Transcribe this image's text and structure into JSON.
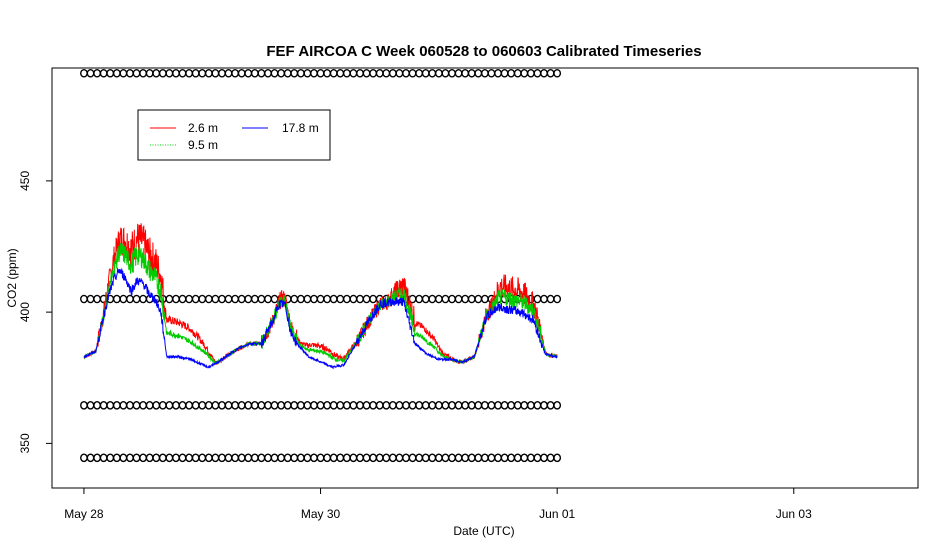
{
  "chart_data": {
    "type": "line",
    "title": "FEF AIRCOA C  Week 060528 to 060603  Calibrated Timeseries",
    "xlabel": "Date (UTC)",
    "ylabel": "CO2 (ppm)",
    "x_ticks": [
      {
        "day": 0,
        "label": "May 28"
      },
      {
        "day": 2,
        "label": "May 30"
      },
      {
        "day": 4,
        "label": "Jun 01"
      },
      {
        "day": 6,
        "label": "Jun 03"
      }
    ],
    "y_ticks": [
      350,
      400,
      450
    ],
    "xlim_days_from_may28": [
      -0.27,
      7.05
    ],
    "ylim": [
      333,
      493
    ],
    "grid": false,
    "legend_position": "top-left",
    "series": [
      {
        "name": "2.6 m",
        "color": "#ff0000"
      },
      {
        "name": "9.5 m",
        "color": "#00cc00",
        "style": "dotted"
      },
      {
        "name": "17.8 m",
        "color": "#0000ff"
      }
    ],
    "series_shape_17_8m": [
      [
        0.0,
        383
      ],
      [
        0.05,
        384
      ],
      [
        0.1,
        385
      ],
      [
        0.15,
        395
      ],
      [
        0.2,
        405
      ],
      [
        0.25,
        412
      ],
      [
        0.3,
        416
      ],
      [
        0.35,
        413
      ],
      [
        0.4,
        408
      ],
      [
        0.45,
        412
      ],
      [
        0.5,
        411
      ],
      [
        0.55,
        407
      ],
      [
        0.6,
        405
      ],
      [
        0.65,
        400
      ],
      [
        0.7,
        383
      ],
      [
        0.8,
        383
      ],
      [
        0.9,
        382
      ],
      [
        1.0,
        380
      ],
      [
        1.05,
        379
      ],
      [
        1.1,
        380
      ],
      [
        1.2,
        383
      ],
      [
        1.3,
        386
      ],
      [
        1.4,
        388
      ],
      [
        1.5,
        388
      ],
      [
        1.6,
        397
      ],
      [
        1.65,
        403
      ],
      [
        1.7,
        403
      ],
      [
        1.75,
        392
      ],
      [
        1.8,
        388
      ],
      [
        1.9,
        383
      ],
      [
        2.0,
        381
      ],
      [
        2.1,
        379
      ],
      [
        2.2,
        380
      ],
      [
        2.3,
        388
      ],
      [
        2.4,
        396
      ],
      [
        2.5,
        403
      ],
      [
        2.6,
        404
      ],
      [
        2.7,
        404
      ],
      [
        2.8,
        388
      ],
      [
        2.9,
        384
      ],
      [
        3.0,
        382
      ],
      [
        3.1,
        382
      ],
      [
        3.2,
        381
      ],
      [
        3.3,
        383
      ],
      [
        3.4,
        398
      ],
      [
        3.5,
        402
      ],
      [
        3.6,
        401
      ],
      [
        3.7,
        400
      ],
      [
        3.8,
        397
      ],
      [
        3.9,
        384
      ],
      [
        4.0,
        383
      ]
    ],
    "offset_9_5m": [
      0,
      0,
      0,
      4,
      8,
      10,
      10,
      9,
      8,
      9,
      8,
      7,
      6,
      5,
      0,
      0,
      0,
      0,
      0,
      0,
      0,
      1,
      1,
      1,
      3,
      4,
      4,
      2,
      1,
      0,
      0,
      0,
      0,
      2,
      4,
      4,
      5,
      4,
      1,
      0,
      0,
      0,
      0,
      1,
      4,
      4,
      4,
      4,
      3,
      0,
      0
    ],
    "offset_2_6m": [
      0,
      0,
      1,
      7,
      13,
      16,
      16,
      15,
      14,
      14,
      13,
      12,
      10,
      7,
      0,
      0,
      0,
      0,
      0,
      0,
      0,
      2,
      2,
      2,
      5,
      6,
      6,
      3,
      2,
      0,
      0,
      0,
      0,
      4,
      7,
      8,
      9,
      7,
      2,
      0,
      0,
      0,
      0,
      2,
      8,
      8,
      8,
      7,
      5,
      0,
      0
    ],
    "flag_rows": [
      {
        "y": 344.5,
        "marker": "o"
      },
      {
        "y": 364.5,
        "marker": "o"
      },
      {
        "y": 405,
        "marker": "o"
      },
      {
        "y": 491,
        "marker": "o"
      }
    ]
  }
}
